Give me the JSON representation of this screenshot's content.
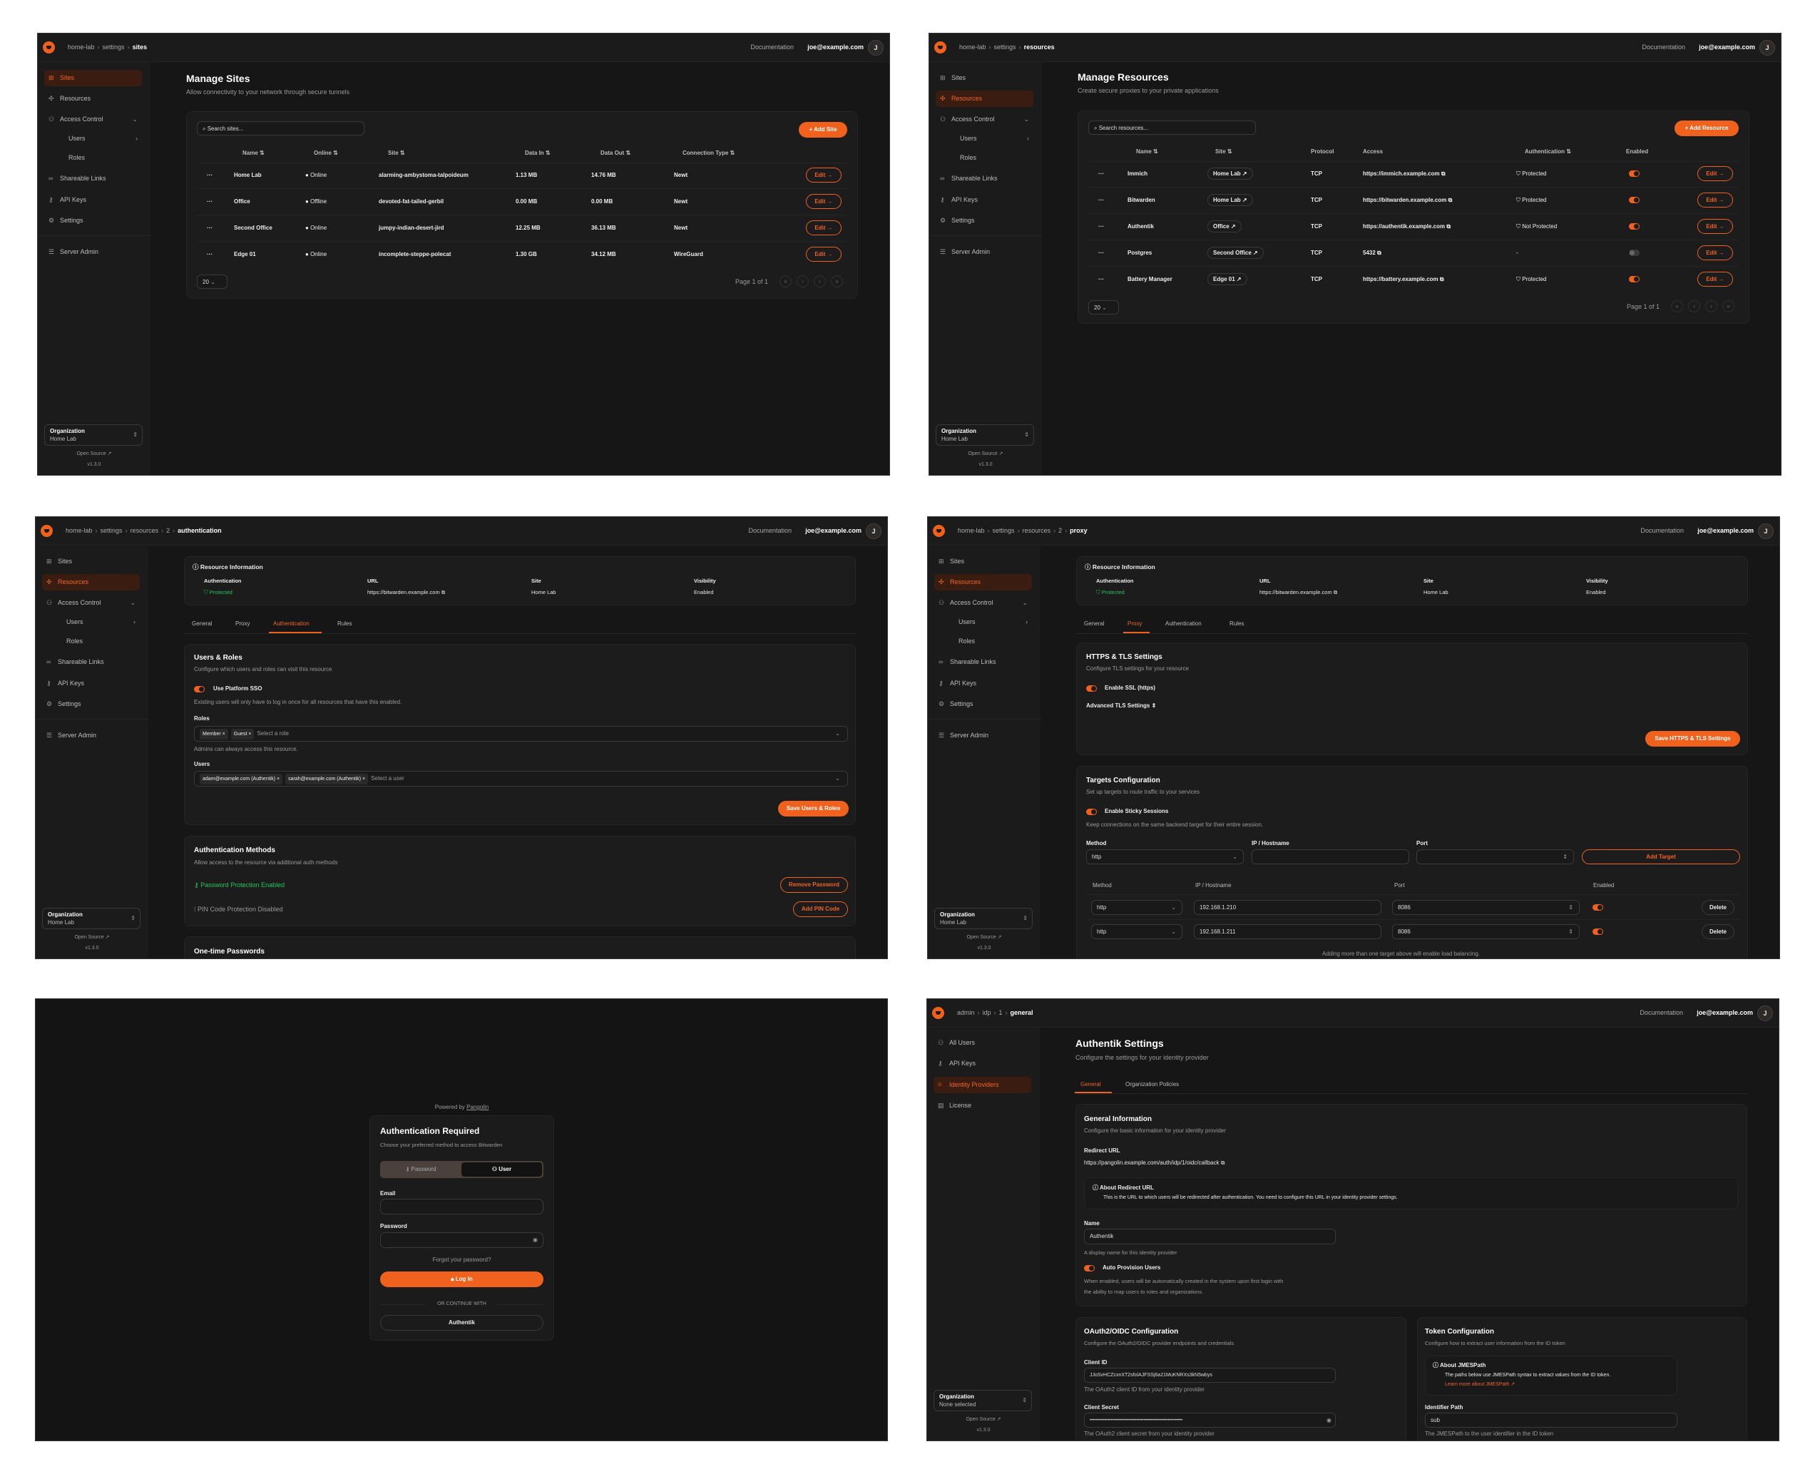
{
  "colors": {
    "accent": "#f0611e",
    "protected": "#22c55e",
    "not_protected": "#eab308",
    "background": "#161616"
  },
  "header": {
    "docs": "Documentation",
    "email": "joe@example.com",
    "avatar": "J"
  },
  "org_nav": [
    {
      "label": "Sites",
      "icon": "sites-icon"
    },
    {
      "label": "Resources",
      "icon": "resources-icon"
    },
    {
      "label": "Access Control",
      "icon": "users-icon",
      "chevron": "v"
    },
    {
      "label": "Users",
      "sub": true,
      "chevron": "›"
    },
    {
      "label": "Roles",
      "sub": true
    },
    {
      "label": "Shareable Links",
      "icon": "link-icon"
    },
    {
      "label": "API Keys",
      "icon": "key-icon"
    },
    {
      "label": "Settings",
      "icon": "gear-icon"
    },
    {
      "label": "Server Admin",
      "icon": "server-icon"
    }
  ],
  "admin_nav": [
    {
      "label": "All Users",
      "icon": "users-icon"
    },
    {
      "label": "API Keys",
      "icon": "key-icon"
    },
    {
      "label": "Identity Providers",
      "icon": "fingerprint-icon"
    },
    {
      "label": "License",
      "icon": "license-icon"
    }
  ],
  "footer": {
    "org_label": "Organization",
    "org_home": "Home Lab",
    "org_none": "None selected",
    "open_source": "Open Source",
    "version": "v1.3.0"
  },
  "sites": {
    "breadcrumb": [
      "home-lab",
      "settings",
      "sites"
    ],
    "title": "Manage Sites",
    "subtitle": "Allow connectivity to your network through secure tunnels",
    "search_placeholder": "Search sites...",
    "add_label": "+ Add Site",
    "columns": [
      "Name ⇅",
      "Online ⇅",
      "Site ⇅",
      "Data In ⇅",
      "Data Out ⇅",
      "Connection Type ⇅"
    ],
    "rows": [
      {
        "name": "Home Lab",
        "online": "Online",
        "status": "online",
        "site": "alarming-ambystoma-talpoideum",
        "data_in": "1.13 MB",
        "data_out": "14.76 MB",
        "type": "Newt"
      },
      {
        "name": "Office",
        "online": "Offline",
        "status": "offline",
        "site": "devoted-fat-tailed-gerbil",
        "data_in": "0.00 MB",
        "data_out": "0.00 MB",
        "type": "Newt"
      },
      {
        "name": "Second Office",
        "online": "Online",
        "status": "online",
        "site": "jumpy-indian-desert-jird",
        "data_in": "12.25 MB",
        "data_out": "36.13 MB",
        "type": "Newt"
      },
      {
        "name": "Edge 01",
        "online": "Online",
        "status": "online",
        "site": "incomplete-steppe-polecat",
        "data_in": "1.30 GB",
        "data_out": "34.12 MB",
        "type": "WireGuard"
      }
    ],
    "edit_label": "Edit →",
    "page_size": "20",
    "page_info": "Page 1 of 1"
  },
  "resources": {
    "breadcrumb": [
      "home-lab",
      "settings",
      "resources"
    ],
    "title": "Manage Resources",
    "subtitle": "Create secure proxies to your private applications",
    "search_placeholder": "Search resources...",
    "add_label": "+ Add Resource",
    "columns": [
      "Name ⇅",
      "Site ⇅",
      "Protocol",
      "Access",
      "Authentication ⇅",
      "Enabled"
    ],
    "rows": [
      {
        "name": "Immich",
        "site": "Home Lab ↗",
        "protocol": "TCP",
        "access": "https://immich.example.com",
        "auth": "Protected",
        "auth_state": "protected",
        "enabled": true
      },
      {
        "name": "Bitwarden",
        "site": "Home Lab ↗",
        "protocol": "TCP",
        "access": "https://bitwarden.example.com",
        "auth": "Protected",
        "auth_state": "protected",
        "enabled": true
      },
      {
        "name": "Authentik",
        "site": "Office ↗",
        "protocol": "TCP",
        "access": "https://authentik.example.com",
        "auth": "Not Protected",
        "auth_state": "not-protected",
        "enabled": true
      },
      {
        "name": "Postgres",
        "site": "Second Office ↗",
        "protocol": "TCP",
        "access": "5432",
        "auth": "-",
        "auth_state": "none",
        "enabled": false
      },
      {
        "name": "Battery Manager",
        "site": "Edge 01 ↗",
        "protocol": "TCP",
        "access": "https://battery.example.com",
        "auth": "Protected",
        "auth_state": "protected",
        "enabled": true
      }
    ],
    "edit_label": "Edit →",
    "page_size": "20",
    "page_info": "Page 1 of 1"
  },
  "resource_info": {
    "title": "Resource Information",
    "auth_label": "Authentication",
    "auth_value": "Protected",
    "url_label": "URL",
    "url_value": "https://bitwarden.example.com",
    "site_label": "Site",
    "site_value": "Home Lab",
    "vis_label": "Visibility",
    "vis_value": "Enabled"
  },
  "resource_tabs": [
    "General",
    "Proxy",
    "Authentication",
    "Rules"
  ],
  "auth_page": {
    "breadcrumb": [
      "home-lab",
      "settings",
      "resources",
      "2",
      "authentication"
    ],
    "users_roles": {
      "title": "Users & Roles",
      "desc": "Configure which users and roles can visit this resource",
      "sso_label": "Use Platform SSO",
      "sso_enabled": true,
      "sso_help": "Existing users will only have to log in once for all resources that have this enabled.",
      "roles_label": "Roles",
      "roles": [
        "Member ×",
        "Guest ×"
      ],
      "roles_placeholder": "Select a role",
      "admins_note": "Admins can always access this resource.",
      "users_label": "Users",
      "users": [
        "adam@example.com (Authentik) ×",
        "sarah@example.com (Authentik) ×"
      ],
      "users_placeholder": "Select a user",
      "save_label": "Save Users & Roles"
    },
    "methods": {
      "title": "Authentication Methods",
      "desc": "Allow access to the resource via additional auth methods",
      "password": "Password Protection Enabled",
      "remove_password": "Remove Password",
      "pin": "PIN Code Protection Disabled",
      "add_pin": "Add PIN Code"
    },
    "otp_title": "One-time Passwords"
  },
  "proxy_page": {
    "breadcrumb": [
      "home-lab",
      "settings",
      "resources",
      "2",
      "proxy"
    ],
    "tls": {
      "title": "HTTPS & TLS Settings",
      "desc": "Configure TLS settings for your resource",
      "ssl_label": "Enable SSL (https)",
      "ssl_enabled": true,
      "advanced": "Advanced TLS Settings ⇕",
      "save_label": "Save HTTPS & TLS Settings"
    },
    "targets": {
      "title": "Targets Configuration",
      "desc": "Set up targets to route traffic to your services",
      "sticky_label": "Enable Sticky Sessions",
      "sticky_enabled": true,
      "sticky_help": "Keep connections on the same backend target for their entire session.",
      "method_label": "Method",
      "ip_label": "IP / Hostname",
      "port_label": "Port",
      "method_value": "http",
      "add_label": "Add Target",
      "columns": [
        "Method",
        "IP / Hostname",
        "Port",
        "Enabled"
      ],
      "rows": [
        {
          "method": "http",
          "ip": "192.168.1.210",
          "port": "8086",
          "enabled": true
        },
        {
          "method": "http",
          "ip": "192.168.1.211",
          "port": "8086",
          "enabled": true
        }
      ],
      "delete_label": "Delete",
      "footer": "Adding more than one target above will enable load balancing."
    }
  },
  "login": {
    "powered_by": "Powered by",
    "powered_link": "Pangolin",
    "title": "Authentication Required",
    "desc": "Choose your preferred method to access Bitwarden",
    "tab_password": "Password",
    "tab_user": "User",
    "email_label": "Email",
    "password_label": "Password",
    "forgot": "Forgot your password?",
    "login_label": "Log In",
    "or": "OR CONTINUE WITH",
    "sso_label": "Authentik"
  },
  "idp_page": {
    "breadcrumb": [
      "admin",
      "idp",
      "1",
      "general"
    ],
    "title": "Authentik Settings",
    "subtitle": "Configure the settings for your identity provider",
    "tabs": [
      "General",
      "Organization Policies"
    ],
    "general": {
      "title": "General Information",
      "desc": "Configure the basic information for your identity provider",
      "redirect_label": "Redirect URL",
      "redirect_value": "https://pangolin.example.com/auth/idp/1/oidc/callback",
      "about_title": "About Redirect URL",
      "about_text": "This is the URL to which users will be redirected after authentication. You need to configure this URL in your identity provider settings.",
      "name_label": "Name",
      "name_value": "Authentik",
      "name_help": "A display name for this identity provider",
      "auto_label": "Auto Provision Users",
      "auto_enabled": true,
      "auto_help1": "When enabled, users will be automatically created in the system upon first login with",
      "auto_help2": "the ability to map users to roles and organizations."
    },
    "oauth": {
      "title": "OAuth2/OIDC Configuration",
      "desc": "Configure the OAuth2/OIDC provider endpoints and credentials",
      "client_id_label": "Client ID",
      "client_id_value": "JJoSvHCZcxnXT2sfolAJFSSj6a21MuKNRXs3kN5wbys",
      "client_id_help": "The OAuth2 client ID from your identity provider",
      "secret_label": "Client Secret",
      "secret_value": "••••••••••••••••••••••••••••••••••••••••••••••••••••••••••••••",
      "secret_help": "The OAuth2 client secret from your identity provider"
    },
    "token": {
      "title": "Token Configuration",
      "desc": "Configure how to extract user information from the ID token",
      "about_title": "About JMESPath",
      "about_text": "The paths below use JMESPath syntax to extract values from the ID token.",
      "about_link": "Learn more about JMESPath ↗",
      "id_path_label": "Identifier Path",
      "id_path_value": "sub",
      "id_path_help": "The JMESPath to the user identifier in the ID token"
    }
  }
}
